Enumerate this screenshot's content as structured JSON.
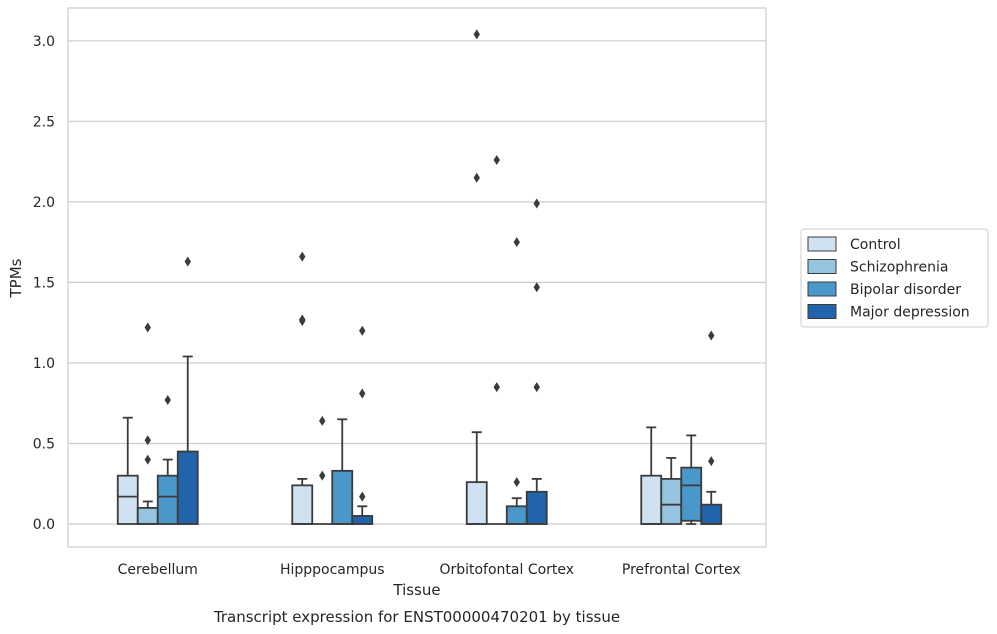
{
  "chart_data": {
    "type": "boxplot",
    "caption": "Transcript expression for ENST00000470201 by tissue",
    "xlabel": "Tissue",
    "ylabel": "TPMs",
    "ylim": [
      -0.15,
      3.2
    ],
    "yticks": [
      0.0,
      0.5,
      1.0,
      1.5,
      2.0,
      2.5,
      3.0
    ],
    "ytick_labels": [
      "0.0",
      "0.5",
      "1.0",
      "1.5",
      "2.0",
      "2.5",
      "3.0"
    ],
    "grid": "horizontal",
    "legend_position": "right",
    "categories": [
      "Cerebellum",
      "Hipppocampus",
      "Orbitofontal Cortex",
      "Prefrontal Cortex"
    ],
    "series": [
      {
        "name": "Control",
        "color": "#d0e1f2",
        "boxes": [
          {
            "low": 0.0,
            "q1": 0.0,
            "median": 0.17,
            "q3": 0.3,
            "high": 0.66,
            "outliers": []
          },
          {
            "low": 0.0,
            "q1": 0.0,
            "median": 0.0,
            "q3": 0.24,
            "high": 0.28,
            "outliers": [
              1.26,
              1.27,
              1.66
            ]
          },
          {
            "low": 0.0,
            "q1": 0.0,
            "median": 0.0,
            "q3": 0.26,
            "high": 0.57,
            "outliers": [
              2.15,
              3.04
            ]
          },
          {
            "low": 0.0,
            "q1": 0.0,
            "median": 0.0,
            "q3": 0.3,
            "high": 0.6,
            "outliers": []
          }
        ]
      },
      {
        "name": "Schizophrenia",
        "color": "#94c4df",
        "boxes": [
          {
            "low": 0.0,
            "q1": 0.0,
            "median": 0.0,
            "q3": 0.1,
            "high": 0.14,
            "outliers": [
              0.4,
              0.52,
              1.22
            ]
          },
          {
            "low": 0.0,
            "q1": 0.0,
            "median": 0.0,
            "q3": 0.0,
            "high": 0.0,
            "outliers": [
              0.3,
              0.64
            ]
          },
          {
            "low": 0.0,
            "q1": 0.0,
            "median": 0.0,
            "q3": 0.0,
            "high": 0.0,
            "outliers": [
              0.85,
              2.26
            ]
          },
          {
            "low": 0.0,
            "q1": 0.0,
            "median": 0.12,
            "q3": 0.28,
            "high": 0.41,
            "outliers": []
          }
        ]
      },
      {
        "name": "Bipolar disorder",
        "color": "#4a98c9",
        "boxes": [
          {
            "low": 0.0,
            "q1": 0.0,
            "median": 0.17,
            "q3": 0.3,
            "high": 0.4,
            "outliers": [
              0.77
            ]
          },
          {
            "low": 0.0,
            "q1": 0.0,
            "median": 0.0,
            "q3": 0.33,
            "high": 0.65,
            "outliers": []
          },
          {
            "low": 0.0,
            "q1": 0.0,
            "median": 0.0,
            "q3": 0.11,
            "high": 0.16,
            "outliers": [
              0.26,
              1.75
            ]
          },
          {
            "low": 0.0,
            "q1": 0.02,
            "median": 0.24,
            "q3": 0.35,
            "high": 0.55,
            "outliers": []
          }
        ]
      },
      {
        "name": "Major depression",
        "color": "#2164ab",
        "boxes": [
          {
            "low": 0.0,
            "q1": 0.0,
            "median": 0.0,
            "q3": 0.45,
            "high": 1.04,
            "outliers": [
              1.63
            ]
          },
          {
            "low": 0.0,
            "q1": 0.0,
            "median": 0.0,
            "q3": 0.05,
            "high": 0.11,
            "outliers": [
              0.17,
              0.81,
              1.2
            ]
          },
          {
            "low": 0.0,
            "q1": 0.0,
            "median": 0.0,
            "q3": 0.2,
            "high": 0.28,
            "outliers": [
              0.85,
              1.47,
              1.99
            ]
          },
          {
            "low": 0.0,
            "q1": 0.0,
            "median": 0.0,
            "q3": 0.12,
            "high": 0.2,
            "outliers": [
              0.39,
              1.17
            ]
          }
        ]
      }
    ]
  }
}
